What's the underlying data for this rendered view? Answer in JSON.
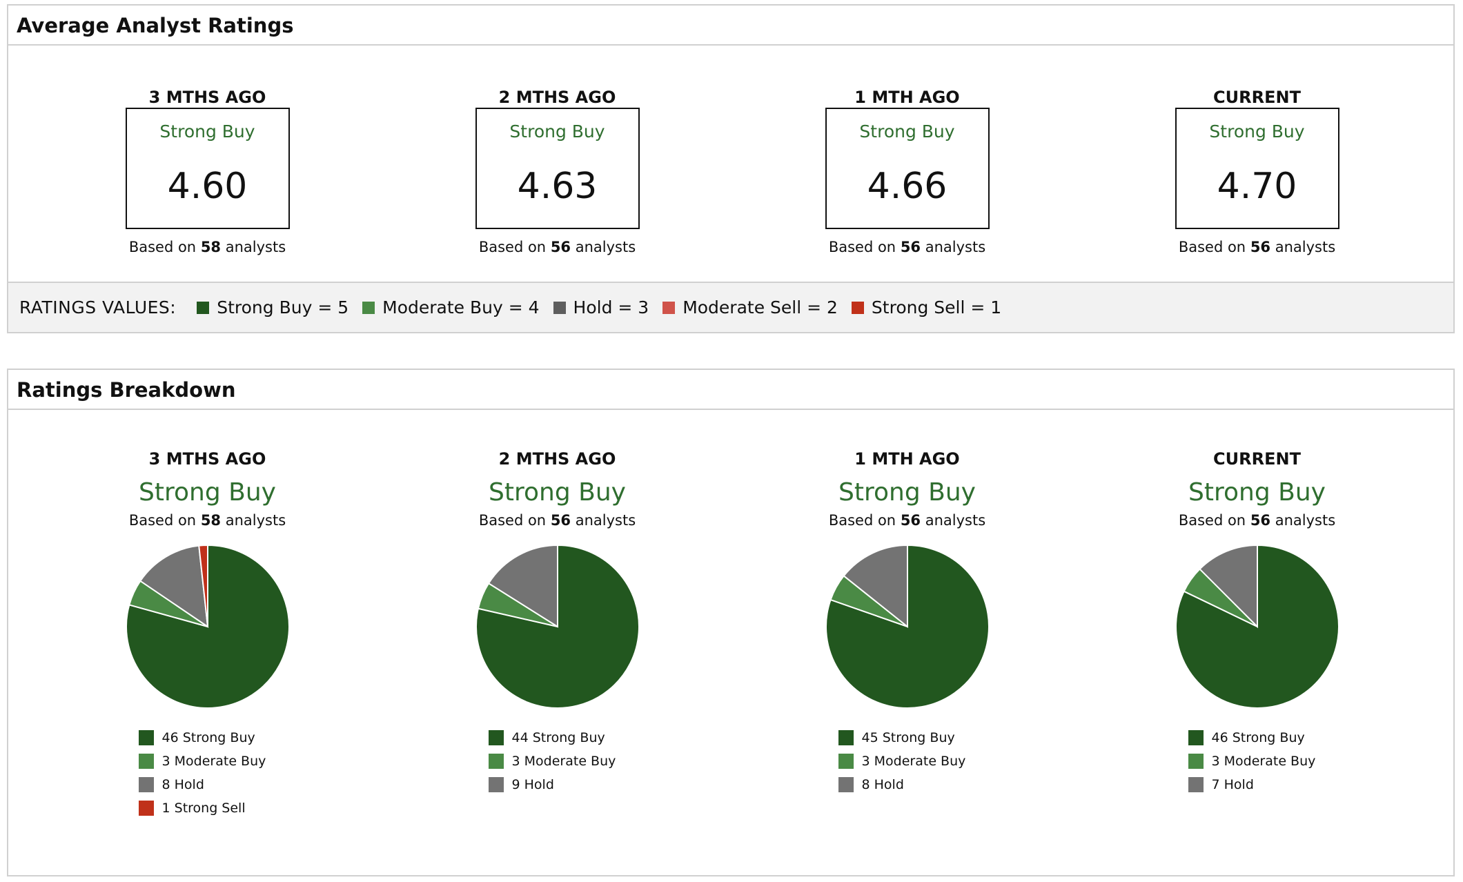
{
  "colors": {
    "strong_buy": "#22571f",
    "moderate_buy": "#4a8a45",
    "hold": "#737373",
    "moderate_sell": "#d0534a",
    "strong_sell": "#c0311a",
    "label_green": "#2f6e2f"
  },
  "average": {
    "title": "Average Analyst Ratings",
    "periods": [
      {
        "period": "3 MTHS AGO",
        "label": "Strong Buy",
        "score": "4.60",
        "based_prefix": "Based on",
        "count": "58",
        "based_suffix": "analysts"
      },
      {
        "period": "2 MTHS AGO",
        "label": "Strong Buy",
        "score": "4.63",
        "based_prefix": "Based on",
        "count": "56",
        "based_suffix": "analysts"
      },
      {
        "period": "1 MTH AGO",
        "label": "Strong Buy",
        "score": "4.66",
        "based_prefix": "Based on",
        "count": "56",
        "based_suffix": "analysts"
      },
      {
        "period": "CURRENT",
        "label": "Strong Buy",
        "score": "4.70",
        "based_prefix": "Based on",
        "count": "56",
        "based_suffix": "analysts"
      }
    ],
    "legend": {
      "title": "RATINGS VALUES:",
      "items": [
        {
          "label": "Strong Buy = 5",
          "color": "#22571f"
        },
        {
          "label": "Moderate Buy = 4",
          "color": "#4a8a45"
        },
        {
          "label": "Hold = 3",
          "color": "#5e5e5e"
        },
        {
          "label": "Moderate Sell = 2",
          "color": "#d0534a"
        },
        {
          "label": "Strong Sell = 1",
          "color": "#c0311a"
        }
      ]
    }
  },
  "breakdown": {
    "title": "Ratings Breakdown"
  },
  "chart_data": [
    {
      "type": "pie",
      "title": "3 MTHS AGO",
      "subtitle": "Strong Buy",
      "based_prefix": "Based on",
      "count": "58",
      "based_suffix": "analysts",
      "slices": [
        {
          "label": "Strong Buy",
          "value": 46,
          "color": "#22571f"
        },
        {
          "label": "Moderate Buy",
          "value": 3,
          "color": "#4a8a45"
        },
        {
          "label": "Hold",
          "value": 8,
          "color": "#737373"
        },
        {
          "label": "Strong Sell",
          "value": 1,
          "color": "#c0311a"
        }
      ]
    },
    {
      "type": "pie",
      "title": "2 MTHS AGO",
      "subtitle": "Strong Buy",
      "based_prefix": "Based on",
      "count": "56",
      "based_suffix": "analysts",
      "slices": [
        {
          "label": "Strong Buy",
          "value": 44,
          "color": "#22571f"
        },
        {
          "label": "Moderate Buy",
          "value": 3,
          "color": "#4a8a45"
        },
        {
          "label": "Hold",
          "value": 9,
          "color": "#737373"
        }
      ]
    },
    {
      "type": "pie",
      "title": "1 MTH AGO",
      "subtitle": "Strong Buy",
      "based_prefix": "Based on",
      "count": "56",
      "based_suffix": "analysts",
      "slices": [
        {
          "label": "Strong Buy",
          "value": 45,
          "color": "#22571f"
        },
        {
          "label": "Moderate Buy",
          "value": 3,
          "color": "#4a8a45"
        },
        {
          "label": "Hold",
          "value": 8,
          "color": "#737373"
        }
      ]
    },
    {
      "type": "pie",
      "title": "CURRENT",
      "subtitle": "Strong Buy",
      "based_prefix": "Based on",
      "count": "56",
      "based_suffix": "analysts",
      "slices": [
        {
          "label": "Strong Buy",
          "value": 46,
          "color": "#22571f"
        },
        {
          "label": "Moderate Buy",
          "value": 3,
          "color": "#4a8a45"
        },
        {
          "label": "Hold",
          "value": 7,
          "color": "#737373"
        }
      ]
    }
  ]
}
